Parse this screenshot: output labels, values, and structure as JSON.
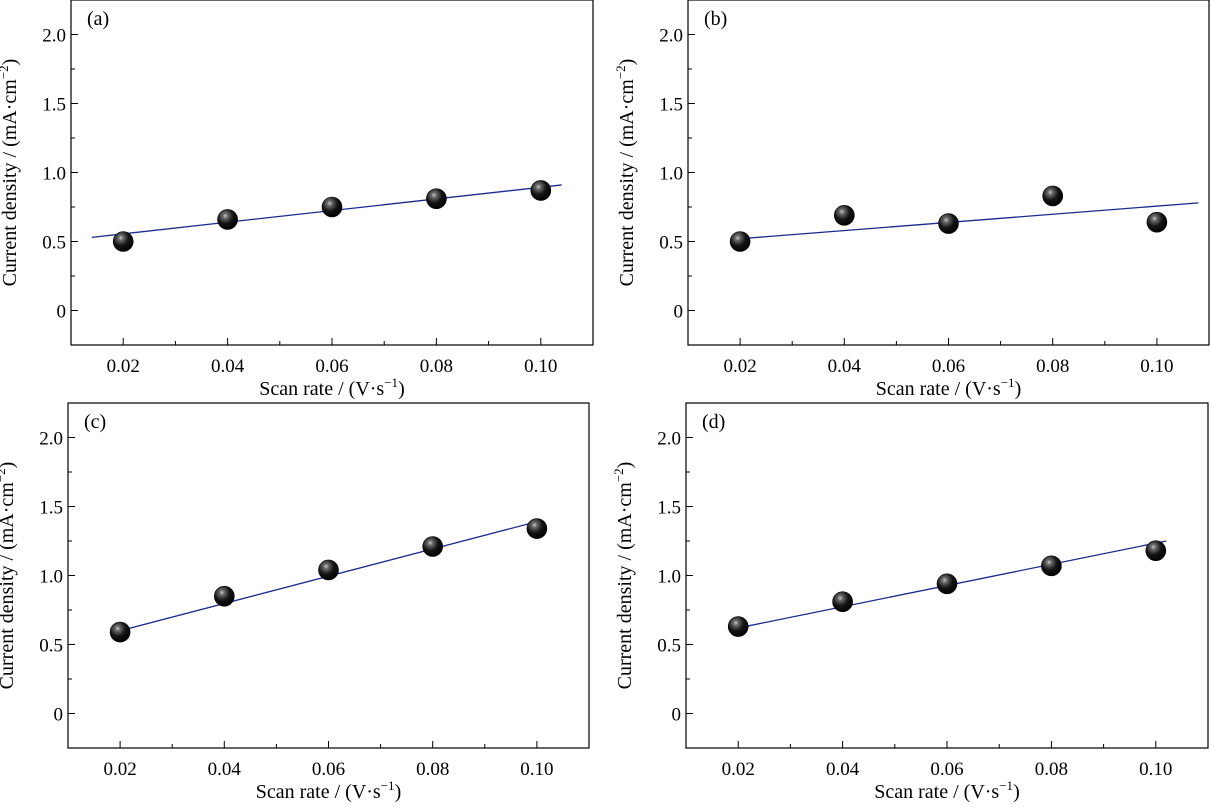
{
  "chart_data": [
    {
      "type": "scatter",
      "panel_label": "(a)",
      "xlabel": "Scan rate / (V·s",
      "xlabel_sup": "−1",
      "xlabel_end": ")",
      "ylabel": "Current density / (mA·cm",
      "ylabel_sup": "−2",
      "ylabel_end": ")",
      "xlim": [
        0.01,
        0.11
      ],
      "ylim": [
        -0.25,
        2.25
      ],
      "xticks": [
        "0.02",
        "0.04",
        "0.06",
        "0.08",
        "0.10"
      ],
      "yticks": [
        "0",
        "0.5",
        "1.0",
        "1.5",
        "2.0"
      ],
      "points": {
        "x": [
          0.02,
          0.04,
          0.06,
          0.08,
          0.1
        ],
        "y": [
          0.5,
          0.66,
          0.75,
          0.81,
          0.87
        ]
      },
      "fit_line": {
        "x": [
          0.014,
          0.104
        ],
        "y": [
          0.53,
          0.91
        ]
      },
      "marker_color": "#000000",
      "line_color": "#1a2a8c"
    },
    {
      "type": "scatter",
      "panel_label": "(b)",
      "xlabel": "Scan rate / (V·s",
      "xlabel_sup": "−1",
      "xlabel_end": ")",
      "ylabel": "Current density / (mA·cm",
      "ylabel_sup": "−2",
      "ylabel_end": ")",
      "xlim": [
        0.01,
        0.11
      ],
      "ylim": [
        -0.25,
        2.25
      ],
      "xticks": [
        "0.02",
        "0.04",
        "0.06",
        "0.08",
        "0.10"
      ],
      "yticks": [
        "0",
        "0.5",
        "1.0",
        "1.5",
        "2.0"
      ],
      "points": {
        "x": [
          0.02,
          0.04,
          0.06,
          0.08,
          0.1
        ],
        "y": [
          0.5,
          0.69,
          0.63,
          0.83,
          0.64
        ]
      },
      "fit_line": {
        "x": [
          0.02,
          0.108
        ],
        "y": [
          0.52,
          0.78
        ]
      },
      "marker_color": "#000000",
      "line_color": "#1a2a8c"
    },
    {
      "type": "scatter",
      "panel_label": "(c)",
      "xlabel": "Scan rate / (V·s",
      "xlabel_sup": "−1",
      "xlabel_end": ")",
      "ylabel": "Current density / (mA·cm",
      "ylabel_sup": "−2",
      "ylabel_end": ")",
      "xlim": [
        0.01,
        0.11
      ],
      "ylim": [
        -0.25,
        2.25
      ],
      "xticks": [
        "0.02",
        "0.04",
        "0.06",
        "0.08",
        "0.10"
      ],
      "yticks": [
        "0",
        "0.5",
        "1.0",
        "1.5",
        "2.0"
      ],
      "points": {
        "x": [
          0.02,
          0.04,
          0.06,
          0.08,
          0.1
        ],
        "y": [
          0.59,
          0.85,
          1.04,
          1.21,
          1.34
        ]
      },
      "fit_line": {
        "x": [
          0.02,
          0.1
        ],
        "y": [
          0.6,
          1.39
        ]
      },
      "marker_color": "#000000",
      "line_color": "#1a2a8c"
    },
    {
      "type": "scatter",
      "panel_label": "(d)",
      "xlabel": "Scan rate / (V·s",
      "xlabel_sup": "−1",
      "xlabel_end": ")",
      "ylabel": "Current density / (mA·cm",
      "ylabel_sup": "−2",
      "ylabel_end": ")",
      "xlim": [
        0.01,
        0.11
      ],
      "ylim": [
        -0.25,
        2.25
      ],
      "xticks": [
        "0.02",
        "0.04",
        "0.06",
        "0.08",
        "0.10"
      ],
      "yticks": [
        "0",
        "0.5",
        "1.0",
        "1.5",
        "2.0"
      ],
      "points": {
        "x": [
          0.02,
          0.04,
          0.06,
          0.08,
          0.1
        ],
        "y": [
          0.63,
          0.81,
          0.94,
          1.07,
          1.18
        ]
      },
      "fit_line": {
        "x": [
          0.02,
          0.102
        ],
        "y": [
          0.62,
          1.25
        ]
      },
      "marker_color": "#000000",
      "line_color": "#1a2a8c"
    }
  ]
}
